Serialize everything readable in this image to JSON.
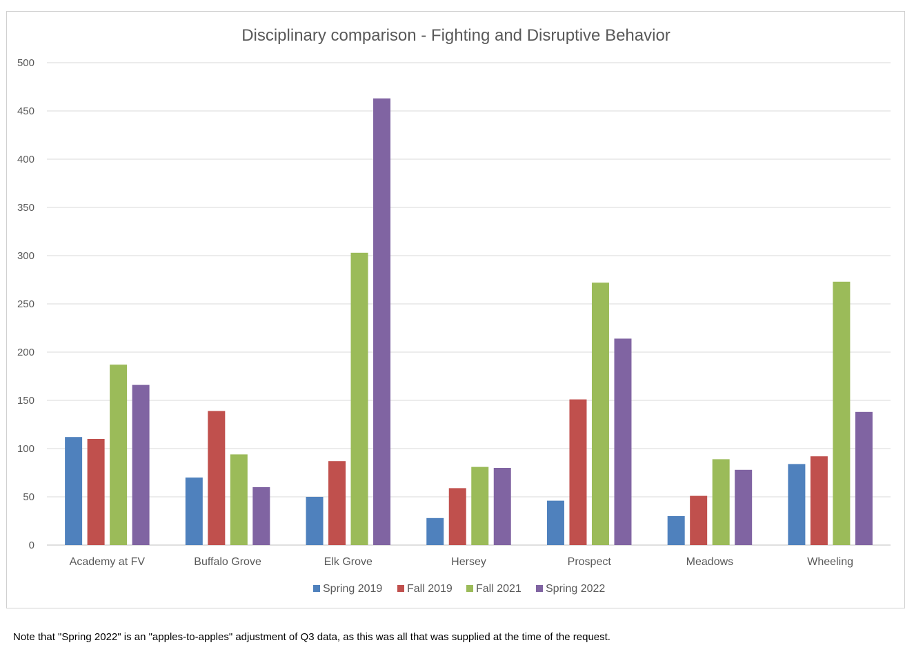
{
  "chart_data": {
    "type": "bar",
    "title": "Disciplinary comparison - Fighting and Disruptive Behavior",
    "categories": [
      "Academy at FV",
      "Buffalo Grove",
      "Elk Grove",
      "Hersey",
      "Prospect",
      "Meadows",
      "Wheeling"
    ],
    "series": [
      {
        "name": "Spring 2019",
        "color": "#4f81bd",
        "values": [
          112,
          70,
          50,
          28,
          46,
          30,
          84
        ]
      },
      {
        "name": "Fall 2019",
        "color": "#c0504d",
        "values": [
          110,
          139,
          87,
          59,
          151,
          51,
          92
        ]
      },
      {
        "name": "Fall 2021",
        "color": "#9bbb59",
        "values": [
          187,
          94,
          303,
          81,
          272,
          89,
          273
        ]
      },
      {
        "name": "Spring 2022",
        "color": "#8064a2",
        "values": [
          166,
          60,
          463,
          80,
          214,
          78,
          138
        ]
      }
    ],
    "ylim": [
      0,
      500
    ],
    "yticks": [
      0,
      50,
      100,
      150,
      200,
      250,
      300,
      350,
      400,
      450,
      500
    ],
    "grid": true,
    "legend_position": "bottom"
  },
  "footnote": "Note that \"Spring 2022\" is an \"apples-to-apples\" adjustment of Q3 data, as this was all that was supplied at the time of the request."
}
